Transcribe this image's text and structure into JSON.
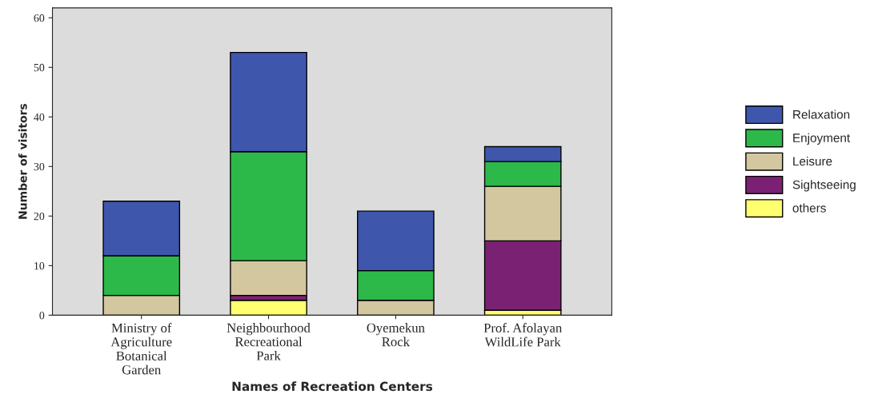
{
  "chart_data": {
    "type": "bar",
    "stacked": true,
    "xlabel": "Names of Recreation Centers",
    "ylabel": "Number of visitors",
    "categories": [
      "Ministry of\nAgriculture\nBotanical\nGarden",
      "Neighbourhood\nRecreational\nPark",
      "Oyemekun\nRock",
      "Prof. Afolayan\nWildLife Park"
    ],
    "series": [
      {
        "name": "others",
        "color": "#ffff70",
        "values": [
          0,
          3,
          0,
          1
        ]
      },
      {
        "name": "Sightseeing",
        "color": "#7b2173",
        "values": [
          0,
          1,
          0,
          14
        ]
      },
      {
        "name": "Leisure",
        "color": "#d2c79f",
        "values": [
          4,
          7,
          3,
          11
        ]
      },
      {
        "name": "Enjoyment",
        "color": "#2db84a",
        "values": [
          8,
          22,
          6,
          5
        ]
      },
      {
        "name": "Relaxation",
        "color": "#3f56ad",
        "values": [
          11,
          20,
          12,
          3
        ]
      }
    ],
    "ylim": [
      0,
      62
    ],
    "yticks": [
      0,
      10,
      20,
      30,
      40,
      50,
      60
    ],
    "grid": false,
    "legend": "right"
  }
}
